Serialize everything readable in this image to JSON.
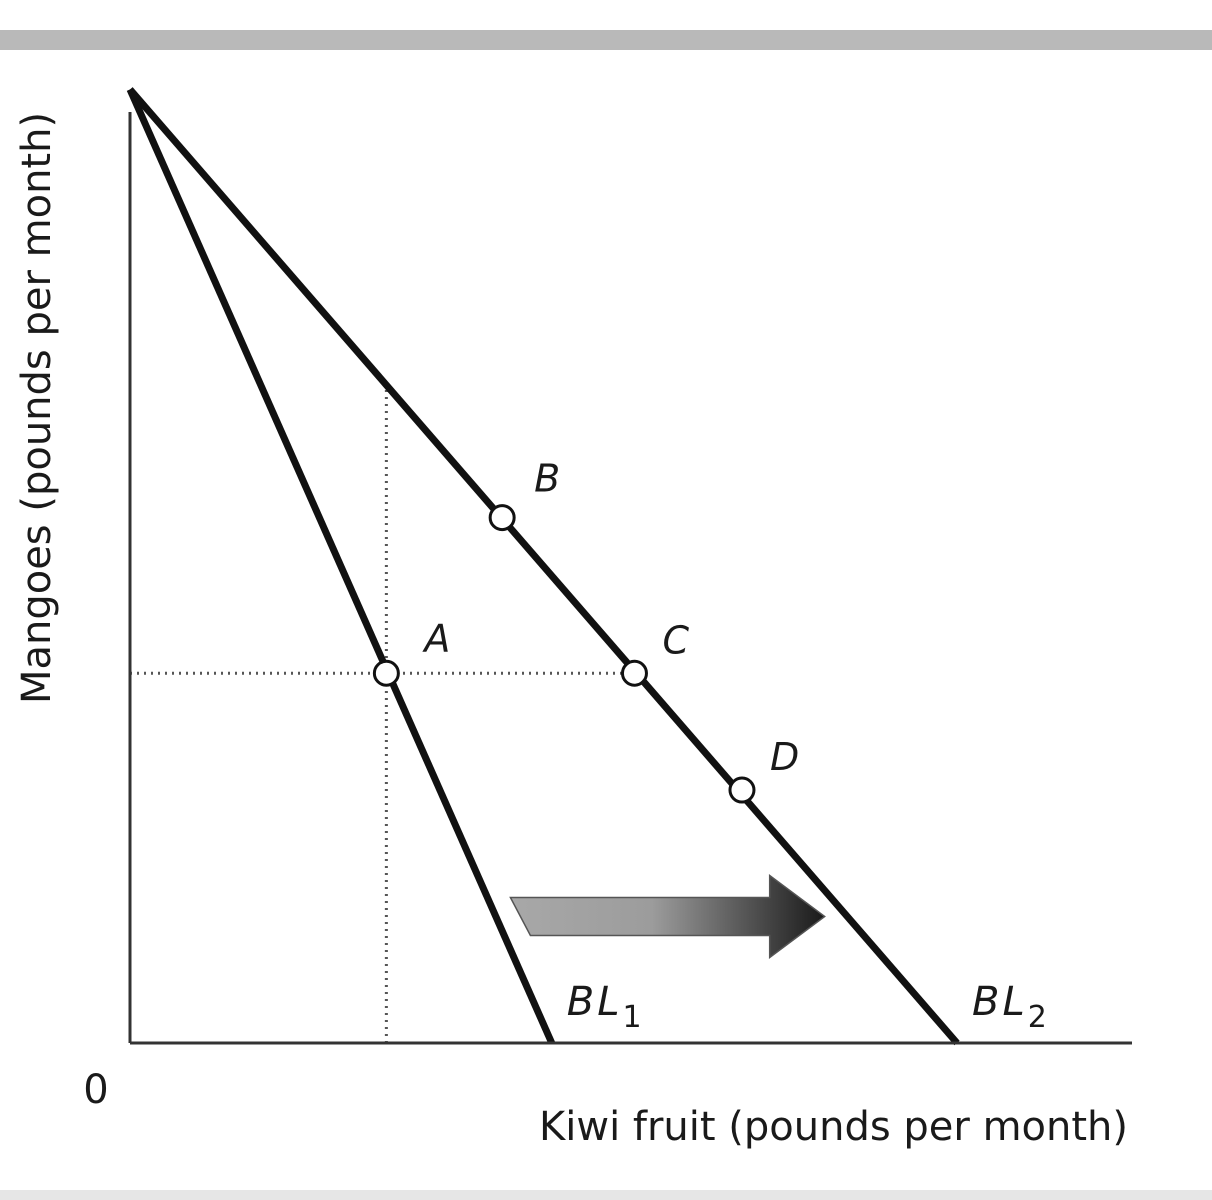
{
  "chart_data": {
    "type": "line",
    "title": "",
    "xlabel": "Kiwi fruit (pounds per month)",
    "ylabel": "Mangoes (pounds per month)",
    "origin_label": "0",
    "xlim": [
      0,
      10
    ],
    "ylim": [
      0,
      10
    ],
    "grid": false,
    "series": [
      {
        "name": "BL₁",
        "label_base": "BL",
        "label_sub": "1",
        "points": [
          [
            0,
            9.8
          ],
          [
            5.1,
            0
          ]
        ]
      },
      {
        "name": "BL₂",
        "label_base": "BL",
        "label_sub": "2",
        "points": [
          [
            0,
            9.8
          ],
          [
            10,
            0
          ]
        ]
      }
    ],
    "points": [
      {
        "label": "A",
        "x": 3.1,
        "y": 3.8
      },
      {
        "label": "B",
        "x": 4.5,
        "y": 5.4
      },
      {
        "label": "C",
        "x": 6.1,
        "y": 3.8
      },
      {
        "label": "D",
        "x": 7.4,
        "y": 2.6
      }
    ],
    "guides": [
      {
        "from": [
          0,
          3.8
        ],
        "to": [
          6.1,
          3.8
        ]
      },
      {
        "from": [
          3.1,
          0
        ],
        "to": [
          3.1,
          6.8
        ]
      }
    ],
    "arrow": {
      "from": [
        4.6,
        1.3
      ],
      "to": [
        8.4,
        1.3
      ],
      "direction": "right",
      "colors": [
        "#a8a8a8",
        "#1a1a1a"
      ]
    }
  }
}
